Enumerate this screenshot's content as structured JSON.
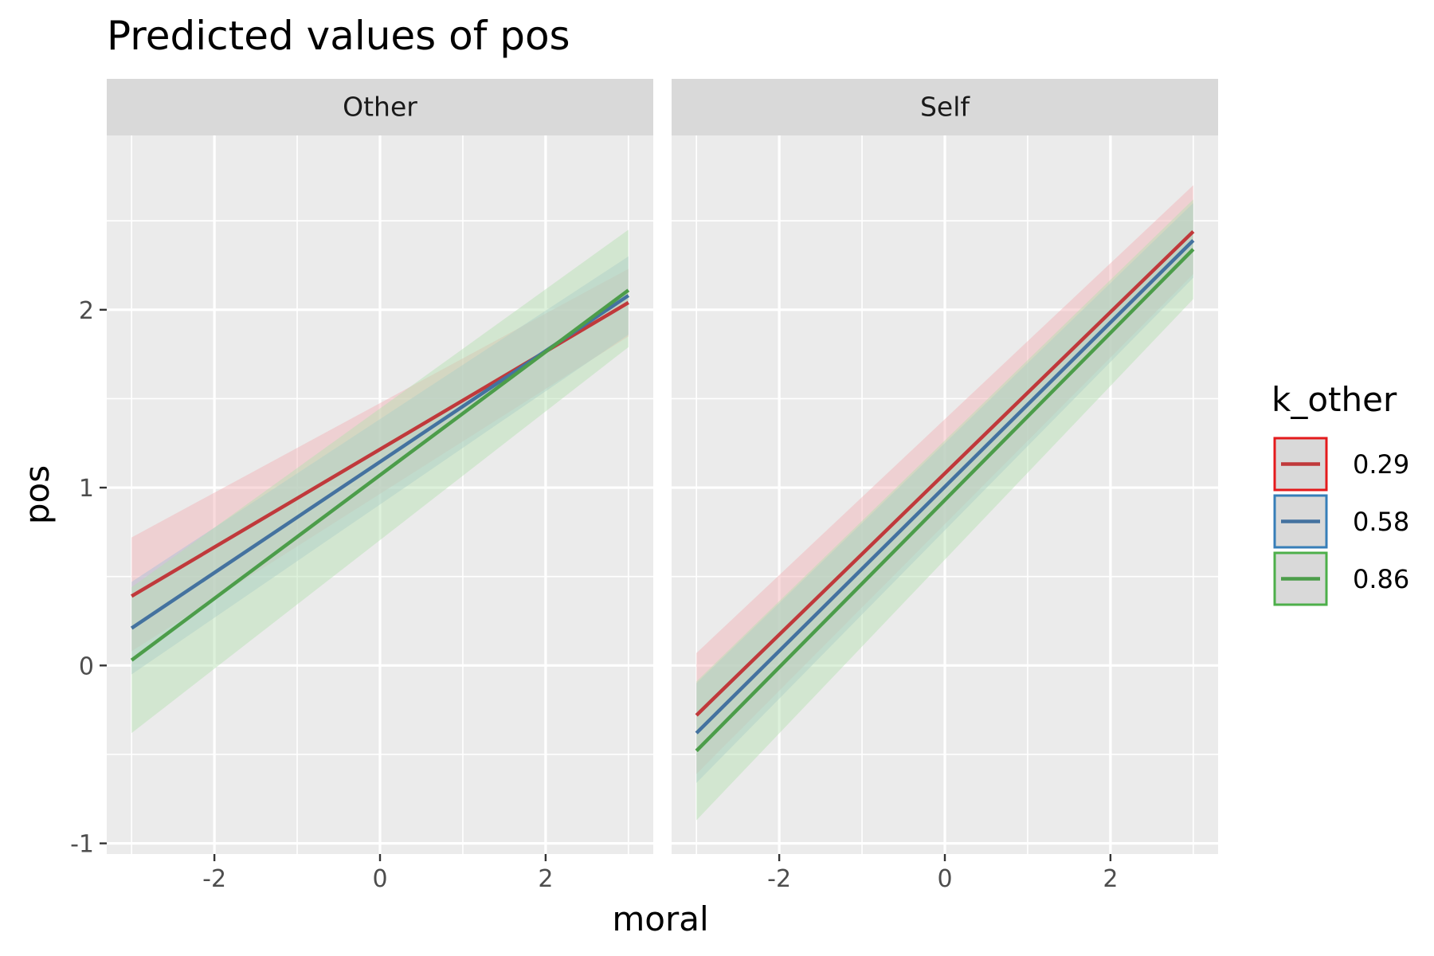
{
  "chart_data": {
    "type": "line",
    "title": "Predicted values of pos",
    "xlabel": "moral",
    "ylabel": "pos",
    "xlim": [
      -3.3,
      3.3
    ],
    "ylim": [
      -1.06,
      2.98
    ],
    "x_ticks": [
      -2,
      0,
      2
    ],
    "x_tick_labels": [
      "-2",
      "0",
      "2"
    ],
    "y_ticks": [
      -1,
      0,
      1,
      2
    ],
    "y_tick_labels": [
      "-1",
      "0",
      "1",
      "2"
    ],
    "x_minor": [
      -3,
      -1,
      1,
      3
    ],
    "y_minor": [
      -0.5,
      0.5,
      1.5,
      2.5
    ],
    "grid": true,
    "legend": {
      "title": "k_other",
      "position": "right",
      "entries": [
        {
          "label": "0.29",
          "line": "#c0393b",
          "border": "#e41a1c"
        },
        {
          "label": "0.58",
          "line": "#44729f",
          "border": "#377eb8"
        },
        {
          "label": "0.86",
          "line": "#4c9d4a",
          "border": "#4daf4a"
        }
      ]
    },
    "band_colors": [
      "#f1b0b4",
      "#a6bed9",
      "#b3e0b0"
    ],
    "panels": [
      {
        "name": "Other",
        "series": [
          {
            "name": "0.29",
            "x": [
              -3,
              3
            ],
            "y": [
              0.39,
              2.04
            ],
            "lower": [
              0.08,
              1.85
            ],
            "upper": [
              0.72,
              2.23
            ]
          },
          {
            "name": "0.58",
            "x": [
              -3,
              3
            ],
            "y": [
              0.21,
              2.08
            ],
            "lower": [
              -0.05,
              1.86
            ],
            "upper": [
              0.47,
              2.3
            ]
          },
          {
            "name": "0.86",
            "x": [
              -3,
              3
            ],
            "y": [
              0.03,
              2.11
            ],
            "lower": [
              -0.38,
              1.79
            ],
            "upper": [
              0.44,
              2.45
            ]
          }
        ]
      },
      {
        "name": "Self",
        "series": [
          {
            "name": "0.29",
            "x": [
              -3,
              3
            ],
            "y": [
              -0.28,
              2.44
            ],
            "lower": [
              -0.61,
              2.2
            ],
            "upper": [
              0.07,
              2.7
            ]
          },
          {
            "name": "0.58",
            "x": [
              -3,
              3
            ],
            "y": [
              -0.38,
              2.39
            ],
            "lower": [
              -0.66,
              2.18
            ],
            "upper": [
              -0.1,
              2.6
            ]
          },
          {
            "name": "0.86",
            "x": [
              -3,
              3
            ],
            "y": [
              -0.48,
              2.34
            ],
            "lower": [
              -0.87,
              2.06
            ],
            "upper": [
              -0.09,
              2.62
            ]
          }
        ]
      }
    ]
  }
}
